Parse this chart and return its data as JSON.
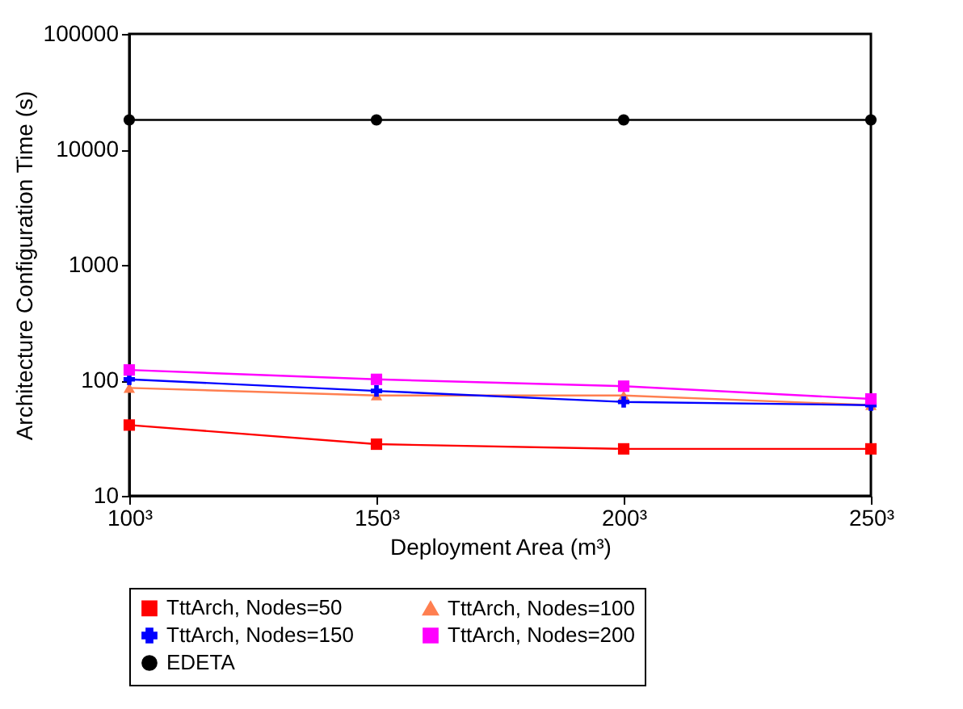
{
  "chart_data": {
    "type": "line",
    "xlabel": "Deployment Area (m³)",
    "ylabel": "Architecture Configuration Time (s)",
    "categories": [
      "100³",
      "150³",
      "200³",
      "250³"
    ],
    "series": [
      {
        "name": "TttArch, Nodes=50",
        "color": "#ff0000",
        "marker": "square",
        "values": [
          41,
          28,
          25.5,
          25.5
        ]
      },
      {
        "name": "TttArch, Nodes=100",
        "color": "#ff7f50",
        "marker": "triangle",
        "values": [
          86,
          74,
          74,
          61
        ]
      },
      {
        "name": "TttArch, Nodes=150",
        "color": "#0000ff",
        "marker": "cross",
        "values": [
          102,
          81,
          65,
          61
        ]
      },
      {
        "name": "TttArch, Nodes=200",
        "color": "#ff00ff",
        "marker": "square",
        "values": [
          123,
          102,
          89,
          69
        ]
      },
      {
        "name": "EDETA",
        "color": "#000000",
        "marker": "circle",
        "values": [
          18000,
          18000,
          18000,
          18000
        ]
      }
    ],
    "log": true,
    "ylim": [
      10,
      100000
    ],
    "yticks": [
      10,
      100,
      1000,
      10000,
      100000
    ],
    "grid": false,
    "legend": "bottom"
  }
}
